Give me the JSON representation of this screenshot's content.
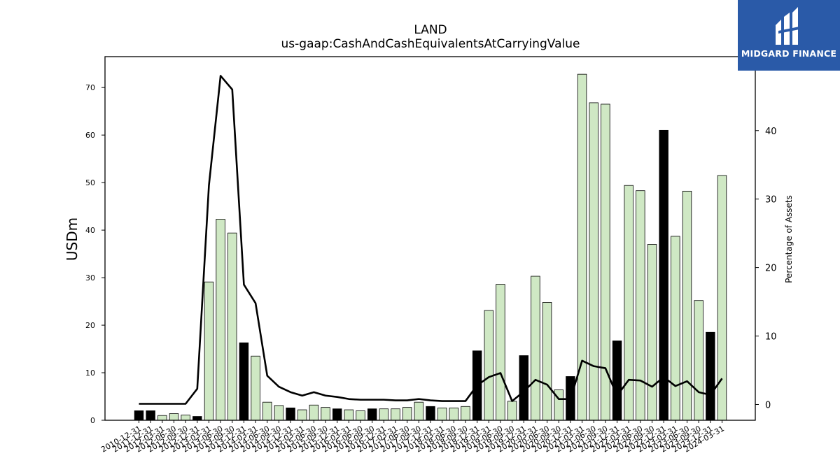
{
  "chart_data": {
    "type": "bar",
    "title": "LAND",
    "subtitle": "us-gaap:CashAndCashEquivalentsAtCarryingValue",
    "ylabel": "USDm",
    "y2label": "Percentage of Assets",
    "ylim": [
      0,
      76.5
    ],
    "y2lim": [
      -2.3,
      50.8
    ],
    "yticks": [
      0,
      10,
      20,
      30,
      40,
      50,
      60,
      70
    ],
    "y2ticks": [
      0,
      10,
      20,
      30,
      40
    ],
    "categories": [
      "2010-12-31",
      "2011-12-31",
      "2012-03-31",
      "2012-06-30",
      "2012-09-30",
      "2012-12-31",
      "2013-03-31",
      "2013-06-30",
      "2013-09-30",
      "2013-12-31",
      "2014-03-31",
      "2014-06-30",
      "2014-09-30",
      "2014-12-31",
      "2015-03-31",
      "2015-06-30",
      "2015-09-30",
      "2015-12-31",
      "2016-03-31",
      "2016-06-30",
      "2016-09-30",
      "2016-12-31",
      "2017-03-31",
      "2017-06-30",
      "2017-09-30",
      "2017-12-31",
      "2018-03-31",
      "2018-06-30",
      "2018-09-30",
      "2018-12-31",
      "2019-03-31",
      "2019-06-30",
      "2019-09-30",
      "2019-12-31",
      "2020-03-31",
      "2020-06-30",
      "2020-09-30",
      "2020-12-31",
      "2021-03-31",
      "2021-06-30",
      "2021-09-30",
      "2021-12-31",
      "2022-03-31",
      "2022-06-30",
      "2022-09-30",
      "2022-12-31",
      "2023-03-31",
      "2023-06-30",
      "2023-09-30",
      "2023-12-31",
      "2024-03-31"
    ],
    "series": [
      {
        "kind": "bar",
        "values": [
          2.0,
          2.0,
          1.0,
          1.4,
          1.1,
          0.8,
          29.1,
          42.3,
          39.4,
          16.3,
          13.5,
          3.8,
          3.1,
          2.6,
          2.2,
          3.2,
          2.7,
          2.4,
          2.2,
          2.0,
          2.4,
          2.4,
          2.4,
          2.7,
          3.8,
          2.9,
          2.6,
          2.6,
          2.9,
          14.6,
          23.1,
          28.6,
          4.0,
          13.6,
          30.3,
          24.8,
          6.4,
          9.2,
          72.8,
          66.8,
          66.5,
          16.7,
          49.4,
          48.3,
          37.0,
          61.0,
          38.7,
          48.2,
          25.2,
          18.5,
          51.5
        ],
        "highlight": [
          true,
          true,
          false,
          false,
          false,
          true,
          false,
          false,
          false,
          true,
          false,
          false,
          false,
          true,
          false,
          false,
          false,
          true,
          false,
          false,
          true,
          false,
          false,
          false,
          false,
          true,
          false,
          false,
          false,
          true,
          false,
          false,
          false,
          true,
          false,
          false,
          false,
          true,
          false,
          false,
          false,
          true,
          false,
          false,
          false,
          true,
          false,
          false,
          false,
          true,
          false
        ]
      },
      {
        "kind": "line",
        "axis": "right",
        "values": [
          0.1,
          0.1,
          0.1,
          0.1,
          0.1,
          2.3,
          32.0,
          48.0,
          46.0,
          17.5,
          14.8,
          4.2,
          2.6,
          1.8,
          1.3,
          1.8,
          1.3,
          1.1,
          0.8,
          0.7,
          0.7,
          0.7,
          0.6,
          0.6,
          0.8,
          0.6,
          0.5,
          0.5,
          0.5,
          2.8,
          4.0,
          4.6,
          0.5,
          1.9,
          3.6,
          2.9,
          0.8,
          0.8,
          6.4,
          5.6,
          5.3,
          1.3,
          3.6,
          3.5,
          2.6,
          4.0,
          2.7,
          3.4,
          1.8,
          1.4,
          3.8
        ]
      }
    ],
    "colors": {
      "bar_default": "#cfe8c4",
      "bar_highlight": "#000000",
      "line": "#000000",
      "bar_edge": "#000000"
    },
    "grid": false,
    "legend": "none"
  },
  "brand": {
    "name": "MIDGARD FINANCE",
    "background": "#2a5aa8",
    "icon": "midgard-logo-icon"
  }
}
